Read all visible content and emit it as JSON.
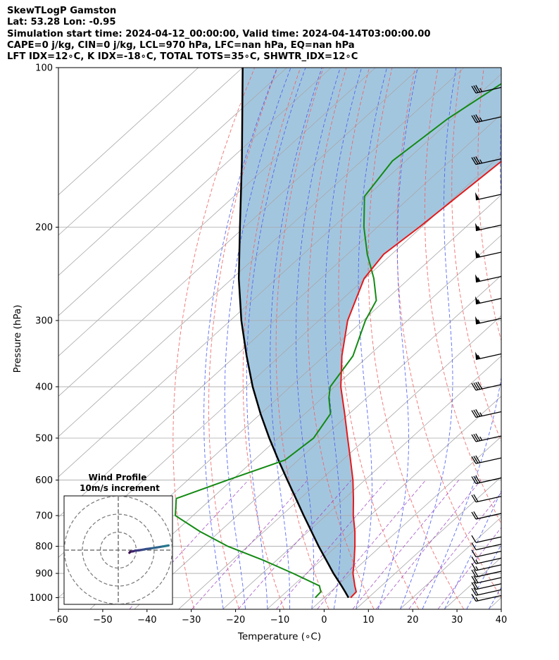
{
  "header": {
    "line1": "SkewTLogP Gamston",
    "line2": "Lat: 53.28   Lon: -0.95",
    "line3": "Simulation start time: 2024-04-12_00:00:00, Valid time: 2024-04-14T03:00:00.00",
    "line4": "CAPE=0 j/kg, CIN=0 j/kg, LCL=970 hPa, LFC=nan hPa, EQ=nan hPa",
    "line5": "LFT IDX=12∘C, K IDX=-18∘C, TOTAL TOTS=35∘C, SHWTR_IDX=12∘C"
  },
  "chart_data": {
    "type": "skewt-logp",
    "xlabel": "Temperature (∘C)",
    "ylabel": "Pressure (hPa)",
    "xlim": [
      -60,
      40
    ],
    "ylim": [
      1050,
      100
    ],
    "y_scale": "log",
    "x_ticks": [
      -60,
      -50,
      -40,
      -30,
      -20,
      -10,
      0,
      10,
      20,
      30,
      40
    ],
    "x_tick_labels": [
      "−60",
      "−50",
      "−40",
      "−30",
      "−20",
      "−10",
      "0",
      "10",
      "20",
      "30",
      "40"
    ],
    "y_ticks": [
      100,
      200,
      300,
      400,
      500,
      600,
      700,
      800,
      900,
      1000
    ],
    "grid": true,
    "colors": {
      "temperature": "#e31a1c",
      "dewpoint": "#138a13",
      "parcel": "#000000",
      "cape_fill": "#a3c6df",
      "dry_adiabat": "#f06060",
      "moist_adiabat": "#4a5cf0",
      "mixing_ratio": "#9b3fbf",
      "isotherm": "#a8a8a8"
    },
    "series": [
      {
        "name": "temperature",
        "pressure": [
          1000,
          975,
          950,
          900,
          850,
          800,
          750,
          700,
          650,
          600,
          550,
          500,
          450,
          400,
          350,
          300,
          250,
          225,
          200,
          175,
          150,
          125,
          110,
          100
        ],
        "temp": [
          6.0,
          5.8,
          4.0,
          0.5,
          -2.5,
          -5.8,
          -9.5,
          -13.8,
          -18.0,
          -22.7,
          -28.2,
          -34.3,
          -41.0,
          -48.6,
          -56.0,
          -63.5,
          -70.2,
          -71.8,
          -70.5,
          -69.5,
          -68.3,
          -66.3,
          -65.5,
          -65.8
        ]
      },
      {
        "name": "dewpoint",
        "pressure": [
          1000,
          975,
          950,
          900,
          850,
          800,
          750,
          700,
          650,
          600,
          550,
          500,
          450,
          420,
          400,
          350,
          300,
          275,
          250,
          225,
          200,
          175,
          150,
          125,
          100
        ],
        "temp": [
          -2.0,
          -2.2,
          -4.0,
          -13.0,
          -23.0,
          -34.5,
          -44.5,
          -54.0,
          -58.0,
          -51.0,
          -43.0,
          -42.0,
          -44.2,
          -48.5,
          -51.0,
          -53.5,
          -59.5,
          -62.0,
          -68.0,
          -75.5,
          -83.0,
          -90.5,
          -93.0,
          -91.0,
          -86.0
        ]
      },
      {
        "name": "parcel",
        "pressure": [
          1000,
          975,
          950,
          900,
          850,
          800,
          750,
          700,
          650,
          600,
          550,
          500,
          450,
          400,
          350,
          300,
          250,
          200,
          150,
          100
        ],
        "temp": [
          5.5,
          3.3,
          1.0,
          -3.9,
          -8.8,
          -14.0,
          -19.3,
          -25.0,
          -31.0,
          -37.5,
          -44.5,
          -52.0,
          -60.0,
          -68.5,
          -77.5,
          -87.5,
          -98.5,
          -111.0,
          -127.0,
          -150.0
        ]
      }
    ],
    "wind_barbs": {
      "pressure": [
        1000,
        975,
        950,
        925,
        900,
        875,
        850,
        825,
        800,
        775,
        700,
        650,
        600,
        550,
        500,
        450,
        400,
        350,
        300,
        275,
        250,
        225,
        200,
        175,
        150,
        125,
        110
      ],
      "speed_kt": [
        15,
        20,
        20,
        20,
        20,
        15,
        15,
        10,
        10,
        10,
        20,
        20,
        30,
        30,
        35,
        35,
        40,
        55,
        55,
        55,
        55,
        55,
        55,
        50,
        35,
        35,
        35
      ]
    },
    "hodograph": {
      "title": "Wind Profile",
      "subtitle": "10m/s increment",
      "rings_m_s": [
        10,
        20,
        30
      ],
      "u": [
        6.2,
        6.8,
        7.5,
        8.5,
        9.5,
        11.5,
        13.5,
        15.5,
        18.5,
        21.5,
        24.5,
        28
      ],
      "v": [
        -1.5,
        -0.8,
        -0.8,
        -0.6,
        -0.3,
        -0.1,
        0.2,
        0.6,
        1.0,
        1.5,
        2.0,
        2.6
      ]
    }
  }
}
